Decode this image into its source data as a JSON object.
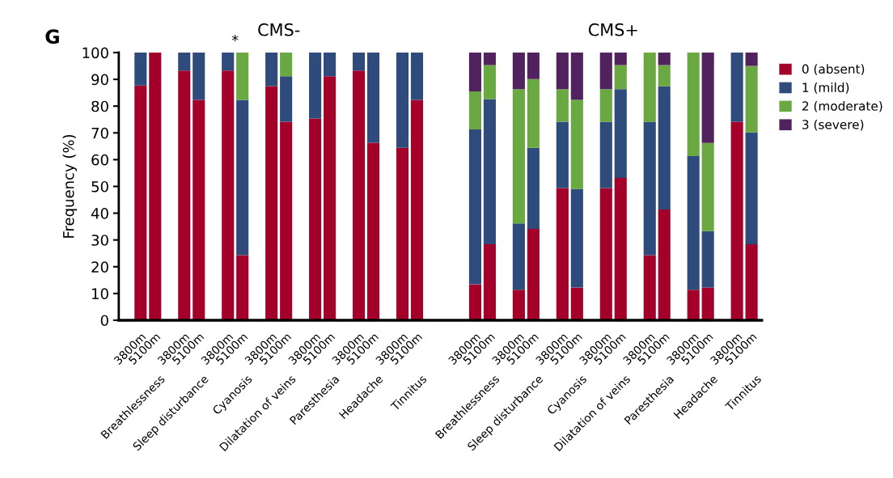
{
  "chart_data": {
    "type": "bar",
    "stacked": true,
    "ylabel": "Frequency (%)",
    "annotations": [
      "G",
      "CMS-",
      "CMS+",
      "*",
      "Breathlessness",
      "Sleep disturbance",
      "Cyanosis",
      "Dilatation of veins",
      "Paresthesia",
      "Headache",
      "Tinnitus",
      "Breathlessness",
      "Sleep disturbance",
      "Cyanosis",
      "Dilatation of veins",
      "Paresthesia",
      "Headache",
      "Tinnitus"
    ],
    "categories": [
      "3800m",
      "5100m",
      null,
      "3800m",
      "5100m",
      null,
      "3800m",
      "5100m",
      null,
      "3800m",
      "5100m",
      null,
      "3800m",
      "5100m",
      null,
      "3800m",
      "5100m",
      null,
      "3800m",
      "5100m",
      null,
      null,
      null,
      "3800m",
      "5100m",
      null,
      "3800m",
      "5100m",
      null,
      "3800m",
      "5100m",
      null,
      "3800m",
      "5100m",
      null,
      "3800m",
      "5100m",
      null,
      "3800m",
      "5100m",
      null,
      "3800m",
      "5100m"
    ],
    "series": [
      {
        "name": "0 (absent)",
        "color": "#a3002a",
        "values": [
          87.7,
          100,
          null,
          93.3,
          82.3,
          null,
          93.3,
          24.3,
          null,
          87.5,
          74.2,
          null,
          75.4,
          91.2,
          null,
          93.3,
          66.3,
          null,
          64.4,
          82.3,
          null,
          null,
          null,
          13.4,
          28.4,
          null,
          11.4,
          34.1,
          null,
          49.4,
          12.2,
          null,
          49.4,
          53.2,
          null,
          24.3,
          41.4,
          null,
          11.4,
          12.2,
          null,
          74.2,
          28.4
        ]
      },
      {
        "name": "1 (mild)",
        "color": "#2e4b7b",
        "values": [
          12.3,
          0,
          null,
          6.7,
          17.7,
          null,
          6.7,
          58.0,
          null,
          12.5,
          17.0,
          null,
          24.6,
          8.8,
          null,
          6.7,
          33.7,
          null,
          35.6,
          17.7,
          null,
          null,
          null,
          57.9,
          54.2,
          null,
          24.8,
          30.3,
          null,
          24.8,
          36.9,
          null,
          24.8,
          33.1,
          null,
          49.9,
          46.1,
          null,
          49.9,
          21.1,
          null,
          25.8,
          41.8
        ]
      },
      {
        "name": "2 (moderate)",
        "color": "#6aa842",
        "values": [
          0,
          0,
          null,
          0,
          0,
          null,
          0,
          17.7,
          null,
          0,
          8.8,
          null,
          0,
          0,
          null,
          0,
          0,
          null,
          0,
          0,
          null,
          null,
          null,
          14.2,
          12.7,
          null,
          50.1,
          25.7,
          null,
          12.1,
          33.2,
          null,
          12.1,
          9.0,
          null,
          25.8,
          7.8,
          null,
          38.7,
          32.9,
          null,
          0,
          24.8
        ]
      },
      {
        "name": "3 (severe)",
        "color": "#51235e",
        "values": [
          0,
          0,
          null,
          0,
          0,
          null,
          0,
          0,
          null,
          0,
          0,
          null,
          0,
          0,
          null,
          0,
          0,
          null,
          0,
          0,
          null,
          null,
          null,
          14.5,
          4.7,
          null,
          13.7,
          9.9,
          null,
          13.7,
          17.7,
          null,
          13.7,
          4.7,
          null,
          0,
          4.7,
          null,
          0,
          33.8,
          null,
          0,
          5.0
        ]
      }
    ],
    "ylim": [
      0,
      100
    ],
    "yticks": [
      0,
      10,
      20,
      30,
      40,
      50,
      60,
      70,
      80,
      90,
      100
    ],
    "grid": false,
    "legend": "top right"
  }
}
